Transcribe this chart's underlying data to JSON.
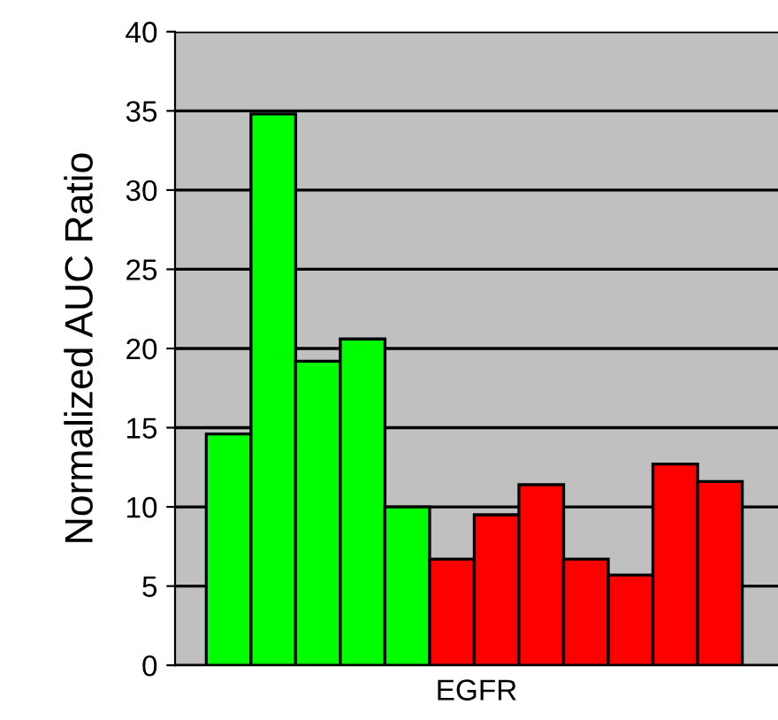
{
  "chart_data": {
    "type": "bar",
    "ylabel": "Normalized AUC Ratio",
    "xlabel": "EGFR",
    "categories": [
      null,
      null,
      null,
      null,
      null,
      null,
      null,
      null,
      null,
      null,
      null,
      null
    ],
    "values": [
      14.6,
      34.8,
      19.2,
      20.6,
      10.0,
      6.7,
      9.5,
      11.4,
      6.7,
      5.7,
      12.7,
      11.6
    ],
    "colors": [
      "#00ff00",
      "#00ff00",
      "#00ff00",
      "#00ff00",
      "#00ff00",
      "#ff0000",
      "#ff0000",
      "#ff0000",
      "#ff0000",
      "#ff0000",
      "#ff0000",
      "#ff0000"
    ],
    "ylim": [
      0,
      40
    ],
    "yticks": [
      0,
      5,
      10,
      15,
      20,
      25,
      30,
      35,
      40
    ],
    "grid": "y"
  }
}
